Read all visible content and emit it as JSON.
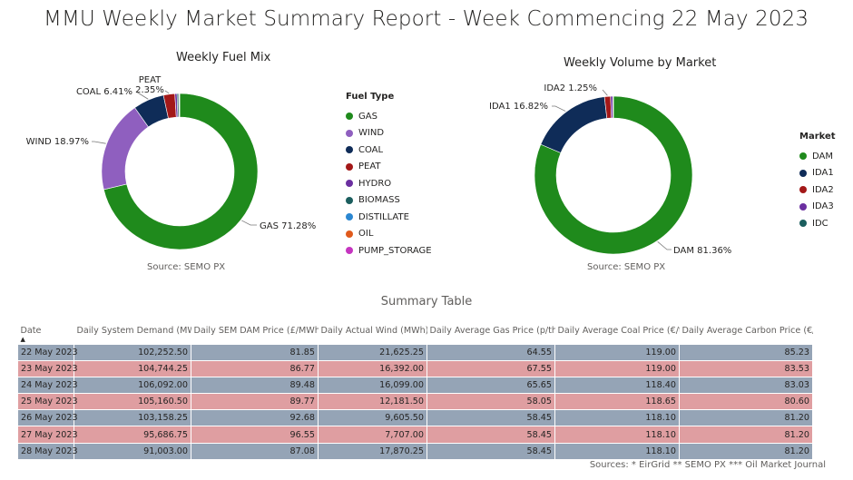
{
  "page": {
    "title": "MMU Weekly Market Summary Report - Week Commencing 22 May 2023"
  },
  "chart_data": [
    {
      "type": "pie",
      "title": "Weekly Fuel Mix",
      "source": "Source: SEMO PX",
      "legend_title": "Fuel Type",
      "legend_position": "right",
      "slices": [
        {
          "name": "GAS",
          "value": 71.28,
          "label": "GAS 71.28%",
          "color": "#1f8a1c"
        },
        {
          "name": "WIND",
          "value": 18.97,
          "label": "WIND 18.97%",
          "color": "#8f5fbf"
        },
        {
          "name": "COAL",
          "value": 6.41,
          "label": "COAL 6.41%",
          "color": "#0f2c58"
        },
        {
          "name": "PEAT",
          "value": 2.35,
          "label": "PEAT 2.35%",
          "color": "#a31818"
        },
        {
          "name": "HYDRO",
          "value": 0.45,
          "label": "",
          "color": "#6b2fa0"
        },
        {
          "name": "BIOMASS",
          "value": 0.34,
          "label": "",
          "color": "#1b5e5e"
        },
        {
          "name": "DISTILLATE",
          "value": 0.1,
          "label": "",
          "color": "#2b87d1"
        },
        {
          "name": "OIL",
          "value": 0.06,
          "label": "",
          "color": "#e05a1c"
        },
        {
          "name": "PUMP_STORAGE",
          "value": 0.04,
          "label": "",
          "color": "#c535c0"
        }
      ]
    },
    {
      "type": "pie",
      "title": "Weekly Volume by Market",
      "source": "Source: SEMO PX",
      "legend_title": "Market",
      "legend_position": "right",
      "slices": [
        {
          "name": "DAM",
          "value": 81.36,
          "label": "DAM 81.36%",
          "color": "#1f8a1c"
        },
        {
          "name": "IDA1",
          "value": 16.82,
          "label": "IDA1 16.82%",
          "color": "#0f2c58"
        },
        {
          "name": "IDA2",
          "value": 1.25,
          "label": "IDA2 1.25%",
          "color": "#a31818"
        },
        {
          "name": "IDA3",
          "value": 0.45,
          "label": "",
          "color": "#6b2fa0"
        },
        {
          "name": "IDC",
          "value": 0.12,
          "label": "",
          "color": "#1b5e5e"
        }
      ]
    },
    {
      "type": "table",
      "title": "Summary Table",
      "columns": [
        "Date",
        "Daily System Demand (MWh)*",
        "Daily SEM DAM Price (£/MWh)**",
        "Daily Actual Wind (MWh)*",
        "Daily Average Gas Price (p/th)***",
        "Daily Average Coal Price (€/t)***",
        "Daily Average Carbon Price (€/t)***"
      ],
      "rows": [
        [
          "22 May 2023",
          "102,252.50",
          "81.85",
          "21,625.25",
          "64.55",
          "119.00",
          "85.23"
        ],
        [
          "23 May 2023",
          "104,744.25",
          "86.77",
          "16,392.00",
          "67.55",
          "119.00",
          "83.53"
        ],
        [
          "24 May 2023",
          "106,092.00",
          "89.48",
          "16,099.00",
          "65.65",
          "118.40",
          "83.03"
        ],
        [
          "25 May 2023",
          "105,160.50",
          "89.77",
          "12,181.50",
          "58.05",
          "118.65",
          "80.60"
        ],
        [
          "26 May 2023",
          "103,158.25",
          "92.68",
          "9,605.50",
          "58.45",
          "118.10",
          "81.20"
        ],
        [
          "27 May 2023",
          "95,686.75",
          "96.55",
          "7,707.00",
          "58.45",
          "118.10",
          "81.20"
        ],
        [
          "28 May 2023",
          "91,003.00",
          "87.08",
          "17,870.25",
          "58.45",
          "118.10",
          "81.20"
        ]
      ],
      "row_colors": [
        "#95a4b6",
        "#df9ea1"
      ]
    }
  ],
  "footer": {
    "sources": "Sources: * EirGrid  ** SEMO PX *** Oil Market Journal"
  }
}
